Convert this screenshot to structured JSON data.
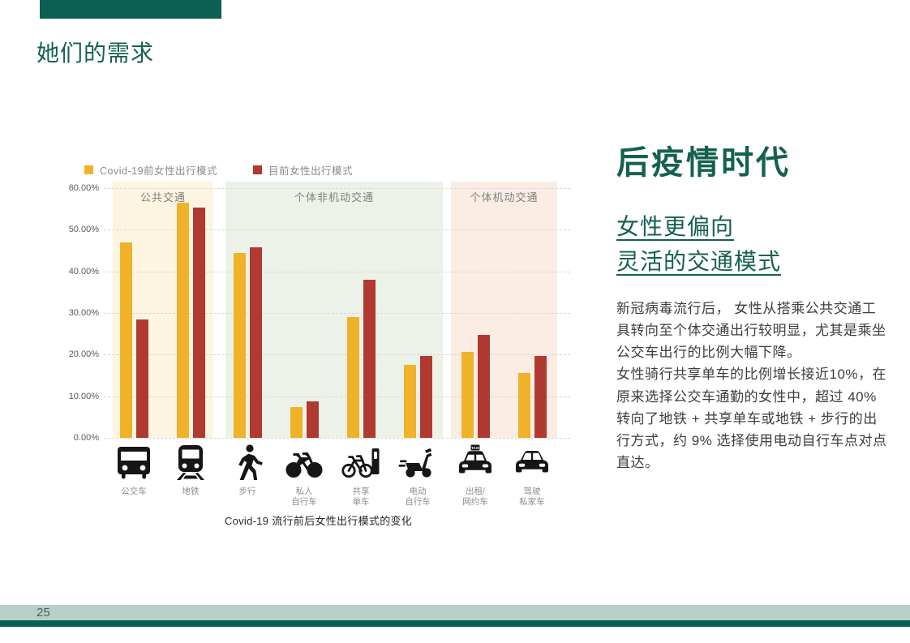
{
  "page": {
    "title": "她们的需求",
    "page_number": "25"
  },
  "right_panel": {
    "heading": "后疫情时代",
    "subheading_line1": "女性更偏向",
    "subheading_line2": "灵活的交通模式",
    "paragraph1": "新冠病毒流行后， 女性从搭乘公共交通工具转向至个体交通出行较明显，尤其是乘坐公交车出行的比例大幅下降。",
    "paragraph2": "女性骑行共享单车的比例增长接近10%，在原来选择公交车通勤的女性中，超过 40% 转向了地铁 + 共享单车或地铁 + 步行的出行方式，约 9% 选择使用电动自行车点对点直达。"
  },
  "chart_data": {
    "type": "bar",
    "title": "Covid-19 流行前后女性出行模式的变化",
    "ylim": [
      0,
      60
    ],
    "ytick_labels": [
      "0.00%",
      "10.00%",
      "20.00%",
      "30.00%",
      "40.00%",
      "50.00%",
      "60.00%"
    ],
    "grid": "dashed-horizontal",
    "legend_position": "top-left",
    "legend": [
      {
        "label": "Covid-19前女性出行模式",
        "color": "#EFB229"
      },
      {
        "label": "目前女性出行模式",
        "color": "#B03A31"
      }
    ],
    "categories": [
      "公交车",
      "地铁",
      "步行",
      "私人自行车",
      "共享单车",
      "电动自行车",
      "出租/网约车",
      "驾驶私家车"
    ],
    "category_display": [
      "公交车",
      "地铁",
      "步行",
      "私人\n自行车",
      "共享\n单车",
      "电动\n自行车",
      "出租/\n网约车",
      "驾驶\n私家车"
    ],
    "category_icons": [
      "bus-icon",
      "metro-icon",
      "pedestrian-icon",
      "bicycle-icon",
      "shared-bike-icon",
      "e-scooter-icon",
      "taxi-icon",
      "car-icon"
    ],
    "series": [
      {
        "name": "Covid-19前女性出行模式",
        "color": "#EFB229",
        "values": [
          47.0,
          56.5,
          44.5,
          7.5,
          29.0,
          17.5,
          20.7,
          15.5
        ]
      },
      {
        "name": "目前女性出行模式",
        "color": "#B03A31",
        "values": [
          28.5,
          55.3,
          45.7,
          8.8,
          38.0,
          19.7,
          24.8,
          19.7
        ]
      }
    ],
    "group_bands": [
      {
        "label": "公共交通",
        "color": "#FDF5E1",
        "category_span": [
          0,
          1
        ]
      },
      {
        "label": "个体非机动交通",
        "color": "#EDF2E8",
        "category_span": [
          2,
          5
        ]
      },
      {
        "label": "个体机动交通",
        "color": "#FBEDE4",
        "category_span": [
          6,
          7
        ]
      }
    ]
  },
  "colors": {
    "brand_green": "#0B6053",
    "heading_green": "#156150",
    "bar_yellow": "#EFB229",
    "bar_red": "#B03A31",
    "footer_sage": "#B6D0C8"
  }
}
